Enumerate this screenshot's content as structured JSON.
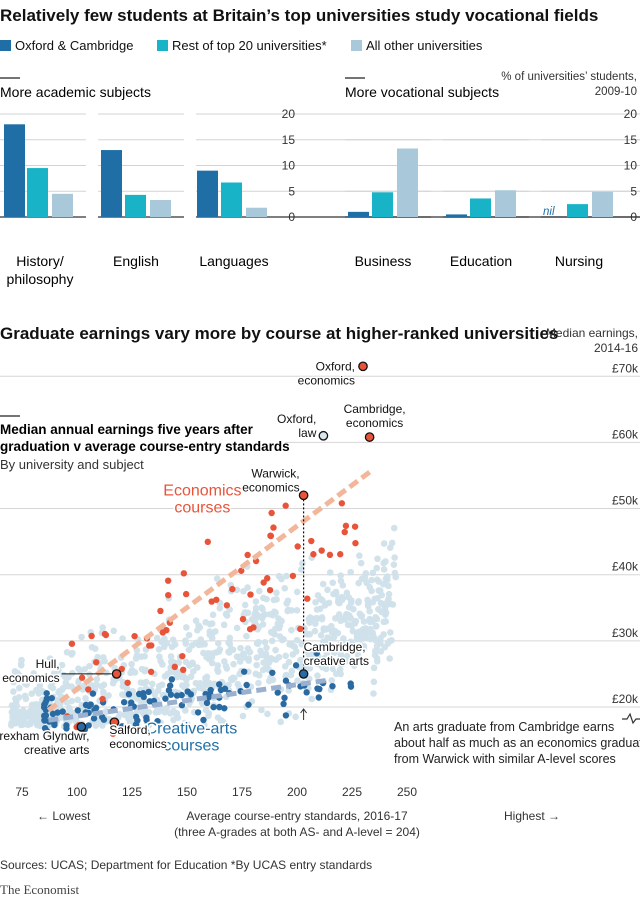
{
  "title": "Relatively few students at Britain’s top universities study vocational fields",
  "legend": [
    {
      "label": "Oxford & Cambridge",
      "color": "#1f6fa6"
    },
    {
      "label": "Rest of top 20 universities*",
      "color": "#19b3c7"
    },
    {
      "label": "All other universities",
      "color": "#a9c9da"
    }
  ],
  "title2": "Graduate earnings vary more by course at higher-ranked universities",
  "footer": {
    "sources": "Sources: UCAS; Department for Education    *By UCAS entry standards",
    "brand": "The Economist"
  },
  "chart_data": [
    {
      "type": "bar",
      "group_labels": {
        "academic": "More academic subjects",
        "vocational": "More vocational subjects"
      },
      "unit_label": "% of universities’ students, 2009-10",
      "categories": [
        "History/ philosophy",
        "English",
        "Languages",
        "Business",
        "Education",
        "Nursing"
      ],
      "series": [
        {
          "name": "Oxford & Cambridge",
          "values": [
            18,
            13,
            9,
            1,
            0.5,
            0
          ]
        },
        {
          "name": "Rest of top 20 universities*",
          "values": [
            9.5,
            4.3,
            6.7,
            4.8,
            3.6,
            2.5
          ]
        },
        {
          "name": "All other universities",
          "values": [
            4.5,
            3.3,
            1.8,
            13.3,
            5.2,
            4.9
          ]
        }
      ],
      "ylim": [
        0,
        20
      ],
      "yticks": [
        0,
        5,
        10,
        15,
        20
      ],
      "annotations": [
        {
          "text": "nil",
          "category": "Nursing"
        }
      ]
    },
    {
      "type": "scatter",
      "subtitle": "Median annual earnings five years after graduation v average course-entry standards",
      "byline": "By university and subject",
      "ylabel": "Median earnings, 2014-16",
      "xlabel": "Average course-entry standards, 2016-17",
      "xlabel2": "(three A-grades at both AS- and A-level = 204)",
      "xlim": [
        70,
        255
      ],
      "ylim": [
        15000,
        75000
      ],
      "xticks": [
        75,
        100,
        125,
        150,
        175,
        200,
        225,
        250
      ],
      "yticks": [
        20000,
        30000,
        40000,
        50000,
        60000,
        70000
      ],
      "ytick_labels": [
        "£20k",
        "£30k",
        "£40k",
        "£50k",
        "£60k",
        "£70k"
      ],
      "x_end_labels": {
        "low": "← Lowest",
        "high": "Highest →"
      },
      "series_labels": [
        {
          "name": "Economics courses",
          "lines": [
            "Economics",
            "courses"
          ],
          "x": 157,
          "y": 52000,
          "color": "#e8543a"
        },
        {
          "name": "Creative-arts courses",
          "lines": [
            "Creative-arts",
            "courses"
          ],
          "x": 152,
          "y": 16000,
          "color": "#1f6fa6"
        }
      ],
      "trend_lines": [
        {
          "name": "Economics",
          "from": [
            87,
            19500
          ],
          "to": [
            233,
            55500
          ],
          "color": "#f2b79b"
        },
        {
          "name": "Creative arts",
          "from": [
            87,
            18000
          ],
          "to": [
            213,
            24000
          ],
          "color": "#9bb0cf"
        }
      ],
      "highlights": [
        {
          "lines": [
            "Oxford,",
            "economics"
          ],
          "x": 230,
          "y": 71500,
          "kind": "economics"
        },
        {
          "lines": [
            "Cambridge,",
            "economics"
          ],
          "x": 233,
          "y": 60800,
          "kind": "economics"
        },
        {
          "lines": [
            "Oxford,",
            "law"
          ],
          "x": 212,
          "y": 61000,
          "kind": "other"
        },
        {
          "lines": [
            "Warwick,",
            "economics"
          ],
          "x": 203,
          "y": 52000,
          "kind": "economics"
        },
        {
          "lines": [
            "Cambridge,",
            "creative arts"
          ],
          "x": 203,
          "y": 25000,
          "kind": "arts"
        },
        {
          "lines": [
            "Hull,",
            "economics"
          ],
          "x": 118,
          "y": 25000,
          "kind": "economics"
        },
        {
          "lines": [
            "Salford,",
            "economics"
          ],
          "x": 117,
          "y": 17700,
          "kind": "economics"
        },
        {
          "lines": [
            "Wrexham Glyndwr,",
            "creative arts"
          ],
          "x": 102,
          "y": 17000,
          "kind": "arts"
        }
      ],
      "note": {
        "lines": [
          "An arts graduate from Cambridge earns",
          "about half as much as an economics graduate",
          "from Warwick with similar A-level scores"
        ]
      }
    }
  ]
}
